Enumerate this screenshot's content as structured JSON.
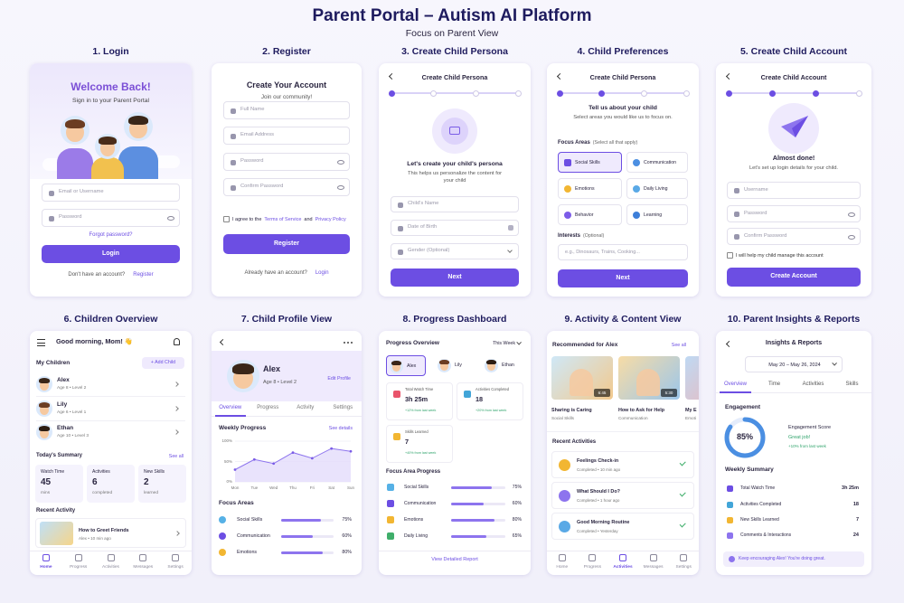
{
  "header": {
    "title": "Parent Portal – Autism AI Platform",
    "subtitle": "Focus on Parent View"
  },
  "screens": [
    {
      "label": "1. Login",
      "heading": "Welcome Back!",
      "subheading": "Sign in to your Parent Portal",
      "fields": [
        "Email or Username",
        "Password"
      ],
      "forgot": "Forgot password?",
      "button": "Login",
      "footer": "Don't have an account?",
      "footer_link": "Register"
    },
    {
      "label": "2. Register",
      "heading": "Create Your Account",
      "subheading": "Join our community!",
      "fields": [
        "Full Name",
        "Email Address",
        "Password",
        "Confirm Password"
      ],
      "terms": [
        "I agree to the",
        "Terms of Service",
        "and",
        "Privacy Policy"
      ],
      "button": "Register",
      "footer": "Already have an account?",
      "footer_link": "Login"
    },
    {
      "label": "3. Create Child Persona",
      "heading": "Create Child Persona",
      "prompt": "Let's create your child's persona",
      "description": "This helps us personalize the content for your child",
      "fields": [
        "Child's Name",
        "Date of Birth",
        "Gender (Optional)"
      ],
      "button": "Next"
    },
    {
      "label": "4. Child Preferences",
      "heading": "Create Child Persona",
      "prompt": "Tell us about your child",
      "description": "Select areas you would like us to focus on.",
      "focus_title": "Focus Areas",
      "focus_hint": "(Select all that apply)",
      "focus_areas": [
        "Social Skills",
        "Communication",
        "Emotions",
        "Daily Living",
        "Behavior",
        "Learning"
      ],
      "interests_title": "Interests",
      "interests_hint": "(Optional)",
      "interests_placeholder": "e.g., Dinosaurs, Trains, Cooking...",
      "button": "Next"
    },
    {
      "label": "5. Create Child Account",
      "heading": "Create Child Account",
      "prompt": "Almost done!",
      "description": "Let's set up login details for your child.",
      "fields": [
        "Username",
        "Password",
        "Confirm Password"
      ],
      "checkbox": "I will help my child manage this account",
      "button": "Create Account"
    },
    {
      "label": "6. Children Overview",
      "greeting": "Good morning, Mom! 👋",
      "section": "My Children",
      "add": "+ Add Child",
      "children": [
        {
          "name": "Alex",
          "meta": "Age 8 • Level 2"
        },
        {
          "name": "Lily",
          "meta": "Age 6 • Level 1"
        },
        {
          "name": "Ethan",
          "meta": "Age 10 • Level 3"
        }
      ],
      "summary_title": "Today's Summary",
      "see_all": "See all",
      "summary": [
        {
          "label": "Watch Time",
          "value": "45",
          "unit": "mins"
        },
        {
          "label": "Activities",
          "value": "6",
          "unit": "completed"
        },
        {
          "label": "New Skills",
          "value": "2",
          "unit": "learned"
        }
      ],
      "recent_title": "Recent Activity",
      "recent": {
        "title": "How to Greet Friends",
        "meta": "Alex • 10 min ago"
      },
      "nav": [
        "Home",
        "Progress",
        "Activities",
        "Messages",
        "Settings"
      ]
    },
    {
      "label": "7. Child Profile View",
      "name": "Alex",
      "meta": "Age 8 • Level 2",
      "edit": "Edit Profile",
      "tabs": [
        "Overview",
        "Progress",
        "Activity",
        "Settings"
      ],
      "chart_title": "Weekly Progress",
      "see_details": "See details",
      "chart": {
        "type": "line",
        "x": [
          "Mon",
          "Tue",
          "Wed",
          "Thu",
          "Fri",
          "Sat",
          "Sun"
        ],
        "values": [
          30,
          55,
          45,
          72,
          58,
          82,
          75
        ],
        "ylim": [
          0,
          100
        ],
        "yticks": [
          {
            "value": 0,
            "label": "0%"
          },
          {
            "value": 50,
            "label": "50%"
          },
          {
            "value": 100,
            "label": "100%"
          }
        ]
      },
      "focus_title": "Focus Areas",
      "focus": [
        {
          "name": "Social Skills",
          "value": 75,
          "label": "75%"
        },
        {
          "name": "Communication",
          "value": 60,
          "label": "60%"
        },
        {
          "name": "Emotions",
          "value": 80,
          "label": "80%"
        }
      ]
    },
    {
      "label": "8. Progress Dashboard",
      "heading": "Progress Overview",
      "period": "This Week",
      "children": [
        "Alex",
        "Lily",
        "Ethan"
      ],
      "stats": [
        {
          "label": "Total Watch Time",
          "value": "3h 25m",
          "change": "+12% from last week"
        },
        {
          "label": "Activities Completed",
          "value": "18",
          "change": "+20% from last week"
        },
        {
          "label": "Skills Learned",
          "value": "7",
          "change": "+40% from last week"
        }
      ],
      "focus_title": "Focus Area Progress",
      "focus": [
        {
          "name": "Social Skills",
          "value": 75,
          "label": "75%"
        },
        {
          "name": "Communication",
          "value": 60,
          "label": "60%"
        },
        {
          "name": "Emotions",
          "value": 80,
          "label": "80%"
        },
        {
          "name": "Daily Living",
          "value": 65,
          "label": "65%"
        }
      ],
      "link": "View Detailed Report"
    },
    {
      "label": "9. Activity & Content View",
      "heading": "Recommended for Alex",
      "see_all": "See all",
      "videos": [
        {
          "title": "Sharing is Caring",
          "tag": "Social Skills",
          "duration": "6:45"
        },
        {
          "title": "How to Ask for Help",
          "tag": "Communication",
          "duration": "5:30"
        },
        {
          "title": "My E",
          "tag": "Emoti"
        }
      ],
      "recent_title": "Recent Activities",
      "recent": [
        {
          "title": "Feelings Check-in",
          "meta": "Completed • 10 min ago"
        },
        {
          "title": "What Should I Do?",
          "meta": "Completed • 1 hour ago"
        },
        {
          "title": "Good Morning Routine",
          "meta": "Completed • Yesterday"
        }
      ],
      "nav": [
        "Home",
        "Progress",
        "Activities",
        "Messages",
        "Settings"
      ]
    },
    {
      "label": "10. Parent Insights & Reports",
      "heading": "Insights & Reports",
      "range": "May 20 – May 26, 2024",
      "tabs": [
        "Overview",
        "Time",
        "Activities",
        "Skills"
      ],
      "engagement_title": "Engagement",
      "score": {
        "value": 85,
        "label": "85%"
      },
      "score_label": "Engagement Score",
      "score_status": "Great job!",
      "score_change": "+10% from last week",
      "summary_title": "Weekly Summary",
      "summary": [
        {
          "label": "Total Watch Time",
          "value": "3h 25m"
        },
        {
          "label": "Activities Completed",
          "value": "18"
        },
        {
          "label": "New Skills Learned",
          "value": "7"
        },
        {
          "label": "Comments & Interactions",
          "value": "24"
        }
      ],
      "note": "Keep encouraging Alex! You're doing great."
    }
  ]
}
